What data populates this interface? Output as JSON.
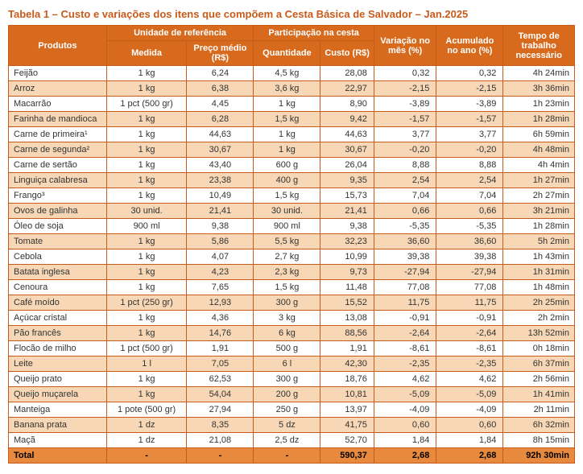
{
  "title": "Tabela 1 – Custo e variações dos itens que compõem a Cesta Básica de Salvador – Jan.2025",
  "headers": {
    "produtos": "Produtos",
    "unidade_ref": "Unidade de referência",
    "medida": "Medida",
    "preco_medio": "Preço médio (R$)",
    "participacao": "Participação na cesta",
    "quantidade": "Quantidade",
    "custo": "Custo (R$)",
    "var_mes": "Variação no mês (%)",
    "acum_ano": "Acumulado no ano (%)",
    "tempo": "Tempo de trabalho necessário"
  },
  "rows": [
    {
      "prod": "Feijão",
      "med": "1 kg",
      "preco": "6,24",
      "qtd": "4,5 kg",
      "custo": "28,08",
      "vm": "0,32",
      "vy": "0,32",
      "tempo": "4h 24min"
    },
    {
      "prod": "Arroz",
      "med": "1 kg",
      "preco": "6,38",
      "qtd": "3,6 kg",
      "custo": "22,97",
      "vm": "-2,15",
      "vy": "-2,15",
      "tempo": "3h 36min"
    },
    {
      "prod": "Macarrão",
      "med": "1 pct (500 gr)",
      "preco": "4,45",
      "qtd": "1 kg",
      "custo": "8,90",
      "vm": "-3,89",
      "vy": "-3,89",
      "tempo": "1h 23min"
    },
    {
      "prod": "Farinha de mandioca",
      "med": "1 kg",
      "preco": "6,28",
      "qtd": "1,5 kg",
      "custo": "9,42",
      "vm": "-1,57",
      "vy": "-1,57",
      "tempo": "1h 28min"
    },
    {
      "prod": "Carne de primeira¹",
      "med": "1 kg",
      "preco": "44,63",
      "qtd": "1 kg",
      "custo": "44,63",
      "vm": "3,77",
      "vy": "3,77",
      "tempo": "6h 59min"
    },
    {
      "prod": "Carne de segunda²",
      "med": "1 kg",
      "preco": "30,67",
      "qtd": "1 kg",
      "custo": "30,67",
      "vm": "-0,20",
      "vy": "-0,20",
      "tempo": "4h 48min"
    },
    {
      "prod": "Carne de sertão",
      "med": "1 kg",
      "preco": "43,40",
      "qtd": "600 g",
      "custo": "26,04",
      "vm": "8,88",
      "vy": "8,88",
      "tempo": "4h 4min"
    },
    {
      "prod": "Linguiça calabresa",
      "med": "1 kg",
      "preco": "23,38",
      "qtd": "400 g",
      "custo": "9,35",
      "vm": "2,54",
      "vy": "2,54",
      "tempo": "1h 27min"
    },
    {
      "prod": "Frango³",
      "med": "1 kg",
      "preco": "10,49",
      "qtd": "1,5 kg",
      "custo": "15,73",
      "vm": "7,04",
      "vy": "7,04",
      "tempo": "2h 27min"
    },
    {
      "prod": "Ovos de galinha",
      "med": "30 unid.",
      "preco": "21,41",
      "qtd": "30 unid.",
      "custo": "21,41",
      "vm": "0,66",
      "vy": "0,66",
      "tempo": "3h 21min"
    },
    {
      "prod": "Óleo de soja",
      "med": "900 ml",
      "preco": "9,38",
      "qtd": "900 ml",
      "custo": "9,38",
      "vm": "-5,35",
      "vy": "-5,35",
      "tempo": "1h 28min"
    },
    {
      "prod": "Tomate",
      "med": "1 kg",
      "preco": "5,86",
      "qtd": "5,5 kg",
      "custo": "32,23",
      "vm": "36,60",
      "vy": "36,60",
      "tempo": "5h 2min"
    },
    {
      "prod": "Cebola",
      "med": "1 kg",
      "preco": "4,07",
      "qtd": "2,7 kg",
      "custo": "10,99",
      "vm": "39,38",
      "vy": "39,38",
      "tempo": "1h 43min"
    },
    {
      "prod": "Batata inglesa",
      "med": "1 kg",
      "preco": "4,23",
      "qtd": "2,3 kg",
      "custo": "9,73",
      "vm": "-27,94",
      "vy": "-27,94",
      "tempo": "1h 31min"
    },
    {
      "prod": "Cenoura",
      "med": "1 kg",
      "preco": "7,65",
      "qtd": "1,5 kg",
      "custo": "11,48",
      "vm": "77,08",
      "vy": "77,08",
      "tempo": "1h 48min"
    },
    {
      "prod": "Café moído",
      "med": "1 pct (250 gr)",
      "preco": "12,93",
      "qtd": "300 g",
      "custo": "15,52",
      "vm": "11,75",
      "vy": "11,75",
      "tempo": "2h 25min"
    },
    {
      "prod": "Açúcar cristal",
      "med": "1 kg",
      "preco": "4,36",
      "qtd": "3 kg",
      "custo": "13,08",
      "vm": "-0,91",
      "vy": "-0,91",
      "tempo": "2h 2min"
    },
    {
      "prod": "Pão francês",
      "med": "1 kg",
      "preco": "14,76",
      "qtd": "6 kg",
      "custo": "88,56",
      "vm": "-2,64",
      "vy": "-2,64",
      "tempo": "13h 52min"
    },
    {
      "prod": "Flocão de milho",
      "med": "1 pct (500 gr)",
      "preco": "1,91",
      "qtd": "500 g",
      "custo": "1,91",
      "vm": "-8,61",
      "vy": "-8,61",
      "tempo": "0h 18min"
    },
    {
      "prod": "Leite",
      "med": "1 l",
      "preco": "7,05",
      "qtd": "6 l",
      "custo": "42,30",
      "vm": "-2,35",
      "vy": "-2,35",
      "tempo": "6h 37min"
    },
    {
      "prod": "Queijo prato",
      "med": "1 kg",
      "preco": "62,53",
      "qtd": "300 g",
      "custo": "18,76",
      "vm": "4,62",
      "vy": "4,62",
      "tempo": "2h 56min"
    },
    {
      "prod": "Queijo muçarela",
      "med": "1 kg",
      "preco": "54,04",
      "qtd": "200 g",
      "custo": "10,81",
      "vm": "-5,09",
      "vy": "-5,09",
      "tempo": "1h 41min"
    },
    {
      "prod": "Manteiga",
      "med": "1 pote (500 gr)",
      "preco": "27,94",
      "qtd": "250 g",
      "custo": "13,97",
      "vm": "-4,09",
      "vy": "-4,09",
      "tempo": "2h 11min"
    },
    {
      "prod": "Banana prata",
      "med": "1 dz",
      "preco": "8,35",
      "qtd": "5 dz",
      "custo": "41,75",
      "vm": "0,60",
      "vy": "0,60",
      "tempo": "6h 32min"
    },
    {
      "prod": "Maçã",
      "med": "1 dz",
      "preco": "21,08",
      "qtd": "2,5 dz",
      "custo": "52,70",
      "vm": "1,84",
      "vy": "1,84",
      "tempo": "8h 15min"
    }
  ],
  "total": {
    "prod": "Total",
    "med": "-",
    "preco": "-",
    "qtd": "-",
    "custo": "590,37",
    "vm": "2,68",
    "vy": "2,68",
    "tempo": "92h 30min"
  },
  "colors": {
    "header_bg": "#d86a1e",
    "border": "#c85a1a",
    "zebra": "#f7d7b5",
    "total_bg": "#e78a3d",
    "title": "#c85a1a"
  },
  "table_type": "table"
}
